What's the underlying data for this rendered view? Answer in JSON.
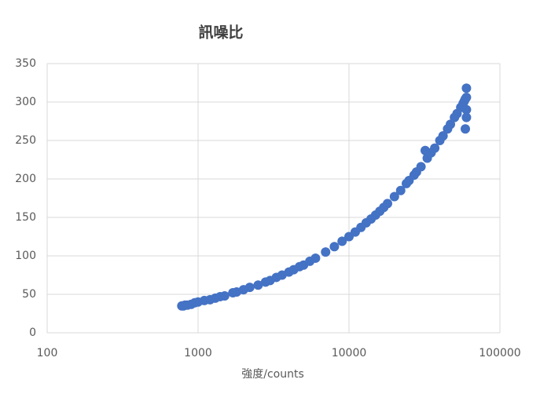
{
  "chart_data": {
    "type": "scatter",
    "title": "訊噪比",
    "x_label": "強度/counts",
    "color": "#4472c4",
    "xlog": true,
    "grid": true,
    "xlim": [
      100,
      100000
    ],
    "xticks": [
      100,
      1000,
      10000,
      100000
    ],
    "ylim": [
      0,
      350
    ],
    "yticks": [
      0,
      50,
      100,
      150,
      200,
      250,
      300,
      350
    ],
    "x": [
      780,
      800,
      820,
      850,
      900,
      950,
      1000,
      1100,
      1200,
      1300,
      1400,
      1500,
      1700,
      1800,
      2000,
      2200,
      2500,
      2800,
      3000,
      3300,
      3600,
      4000,
      4300,
      4700,
      5000,
      5500,
      6000,
      7000,
      8000,
      9000,
      10000,
      11000,
      12000,
      13000,
      14000,
      15000,
      16000,
      17000,
      18000,
      20000,
      22000,
      24000,
      25000,
      27000,
      28000,
      30000,
      32000,
      33000,
      35000,
      37000,
      40000,
      42000,
      45000,
      47000,
      50000,
      52000,
      55000,
      57000,
      58000,
      59000,
      60000,
      60000,
      60000,
      59000,
      60000
    ],
    "values": [
      35,
      35,
      36,
      36,
      37,
      39,
      40,
      42,
      43,
      45,
      47,
      48,
      52,
      53,
      56,
      59,
      62,
      66,
      68,
      72,
      75,
      79,
      82,
      86,
      88,
      93,
      97,
      105,
      112,
      119,
      125,
      131,
      137,
      143,
      148,
      153,
      158,
      163,
      168,
      177,
      185,
      194,
      198,
      205,
      209,
      216,
      237,
      227,
      234,
      240,
      250,
      256,
      265,
      271,
      280,
      285,
      293,
      298,
      301,
      304,
      306,
      318,
      280,
      265,
      290
    ]
  }
}
